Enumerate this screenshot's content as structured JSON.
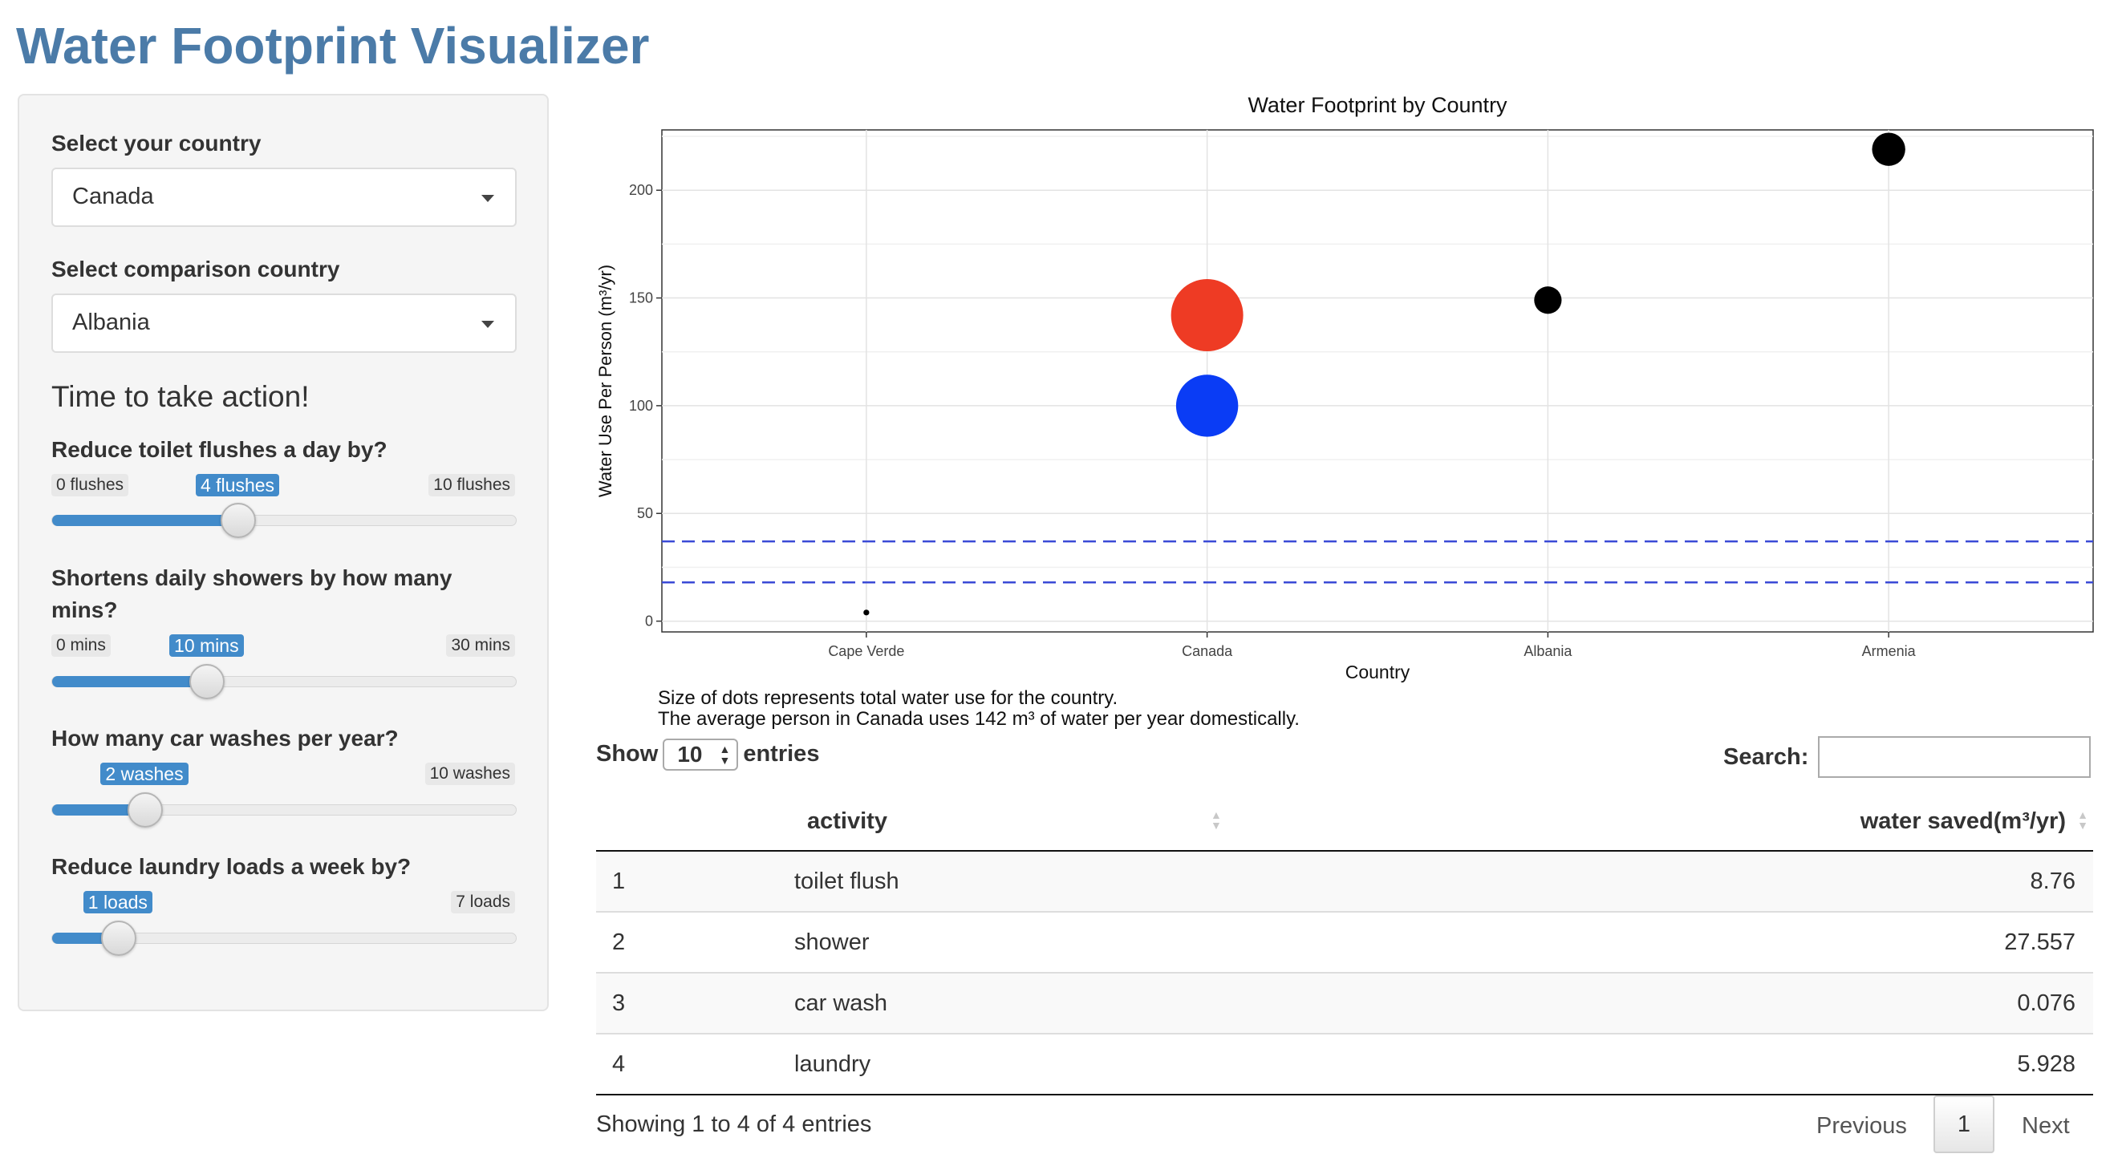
{
  "app": {
    "title": "Water Footprint Visualizer"
  },
  "sidebar": {
    "country_label": "Select your country",
    "country_value": "Canada",
    "comparison_label": "Select comparison country",
    "comparison_value": "Albania",
    "action_heading": "Time to take action!",
    "sliders": [
      {
        "label": "Reduce toilet flushes a day by?",
        "min_label": "0 flushes",
        "max_label": "10 flushes",
        "value_label": "4 flushes",
        "min": 0,
        "max": 10,
        "value": 4
      },
      {
        "label": "Shortens daily showers by how many mins?",
        "label_line2": "",
        "min_label": "0 mins",
        "max_label": "30 mins",
        "value_label": "10 mins",
        "min": 0,
        "max": 30,
        "value": 10
      },
      {
        "label": "How many car washes per year?",
        "min_label": "",
        "max_label": "10 washes",
        "value_label": "2 washes",
        "min": 0,
        "max": 10,
        "value": 2
      },
      {
        "label": "Reduce laundry loads a week by?",
        "min_label": "",
        "max_label": "7 loads",
        "value_label": "1 loads",
        "min": 0,
        "max": 7,
        "value": 1
      }
    ]
  },
  "chart_data": {
    "type": "scatter",
    "title": "Water Footprint by Country",
    "xlabel": "Country",
    "ylabel": "Water Use Per Person (m³/yr)",
    "categories": [
      "Cape Verde",
      "Canada",
      "Albania",
      "Armenia"
    ],
    "yticks": [
      0,
      50,
      100,
      150,
      200
    ],
    "ylim": [
      -5,
      228
    ],
    "grid": true,
    "points": [
      {
        "x": "Cape Verde",
        "y": 4,
        "size": 0.08,
        "color": "#000000"
      },
      {
        "x": "Canada",
        "y": 142,
        "size": 1.0,
        "color": "#ee3b24"
      },
      {
        "x": "Canada",
        "y": 100,
        "size": 0.86,
        "color": "#0a3cf5"
      },
      {
        "x": "Albania",
        "y": 149,
        "size": 0.38,
        "color": "#000000"
      },
      {
        "x": "Armenia",
        "y": 219,
        "size": 0.46,
        "color": "#000000"
      }
    ],
    "hlines": [
      {
        "y": 37,
        "color": "#3a4ad6",
        "style": "dashed"
      },
      {
        "y": 18,
        "color": "#3a4ad6",
        "style": "dashed"
      }
    ]
  },
  "notes": {
    "line1": "Size of dots represents total water use for the country.",
    "line2": "The average person in Canada uses 142 m³ of water per year domestically."
  },
  "table": {
    "show_label": "Show",
    "entries_label": "entries",
    "length_value": "10",
    "search_label": "Search:",
    "columns": [
      "",
      "activity",
      "water saved(m³/yr)"
    ],
    "rows": [
      {
        "n": "1",
        "activity": "toilet flush",
        "saved": "8.76"
      },
      {
        "n": "2",
        "activity": "shower",
        "saved": "27.557"
      },
      {
        "n": "3",
        "activity": "car wash",
        "saved": "0.076"
      },
      {
        "n": "4",
        "activity": "laundry",
        "saved": "5.928"
      }
    ],
    "info": "Showing 1 to 4 of 4 entries",
    "prev_label": "Previous",
    "page": "1",
    "next_label": "Next"
  }
}
